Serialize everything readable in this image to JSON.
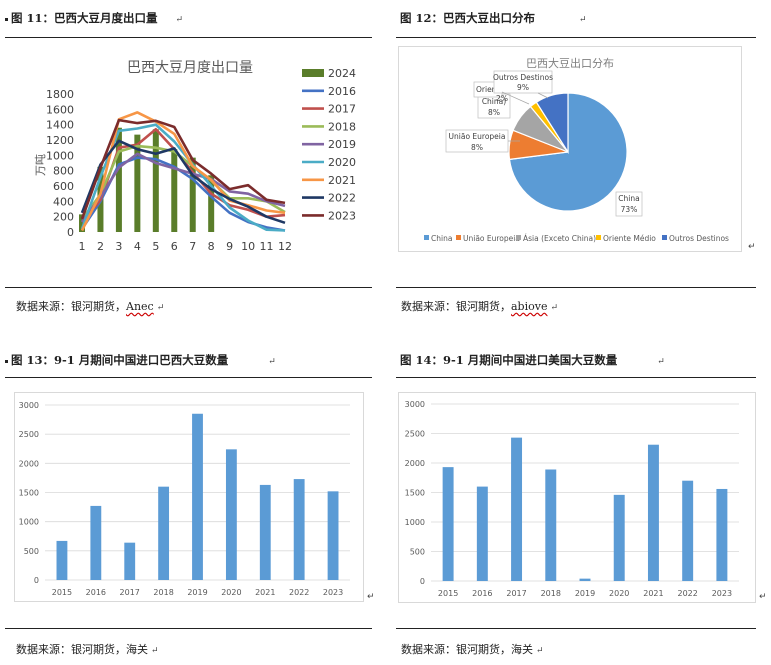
{
  "figures": [
    {
      "title": "图 11：巴西大豆月度出口量",
      "source": "数据来源：银河期货，",
      "source_link": "Anec"
    },
    {
      "title": "图 12：巴西大豆出口分布",
      "source": "数据来源：银河期货，",
      "source_link": "abiove"
    },
    {
      "title": "图 13：9-1 月期间中国进口巴西大豆数量",
      "source": "数据来源：银河期货，海关"
    },
    {
      "title": "图 14：9-1 月期间中国进口美国大豆数量",
      "source": "数据来源：银河期货，海关"
    }
  ],
  "paragraph_mark": "↵",
  "chart_data": [
    {
      "type": "bar+line",
      "title": "巴西大豆月度出口量",
      "ylabel": "万吨",
      "ylim": [
        0,
        1800
      ],
      "yticks": [
        0,
        200,
        400,
        600,
        800,
        1000,
        1200,
        1400,
        1600,
        1800
      ],
      "categories": [
        "1",
        "2",
        "3",
        "4",
        "5",
        "6",
        "7",
        "8",
        "9",
        "10",
        "11",
        "12"
      ],
      "bar_series": {
        "name": "2024",
        "color": "#5a7d2a",
        "values": [
          230,
          850,
          1360,
          1270,
          1340,
          1080,
          970,
          740,
          null,
          null,
          null,
          null
        ]
      },
      "series": [
        {
          "name": "2016",
          "color": "#4472c4",
          "values": [
            40,
            400,
            880,
            970,
            950,
            850,
            690,
            460,
            250,
            130,
            60,
            20
          ]
        },
        {
          "name": "2017",
          "color": "#c0504d",
          "values": [
            130,
            420,
            1100,
            1140,
            1340,
            1080,
            780,
            500,
            350,
            290,
            200,
            220
          ]
        },
        {
          "name": "2018",
          "color": "#9bbb59",
          "values": [
            170,
            490,
            1050,
            1120,
            1100,
            1050,
            860,
            670,
            440,
            440,
            400,
            260
          ]
        },
        {
          "name": "2019",
          "color": "#8064a2",
          "values": [
            130,
            460,
            840,
            1020,
            900,
            830,
            760,
            690,
            530,
            500,
            400,
            340
          ]
        },
        {
          "name": "2020",
          "color": "#4bacc6",
          "values": [
            40,
            720,
            1320,
            1350,
            1400,
            1180,
            880,
            600,
            320,
            150,
            30,
            20
          ]
        },
        {
          "name": "2021",
          "color": "#f79646",
          "values": [
            20,
            500,
            1470,
            1560,
            1440,
            1280,
            860,
            680,
            410,
            350,
            280,
            250
          ]
        },
        {
          "name": "2022",
          "color": "#1f3864",
          "values": [
            250,
            880,
            1190,
            1080,
            1020,
            1090,
            740,
            560,
            430,
            330,
            200,
            120
          ]
        },
        {
          "name": "2023",
          "color": "#7b2c2c",
          "values": [
            170,
            840,
            1460,
            1420,
            1450,
            1370,
            940,
            760,
            560,
            610,
            420,
            380
          ]
        }
      ],
      "legend": "right",
      "grid": false
    },
    {
      "type": "pie",
      "title": "巴西大豆出口分布",
      "labels": [
        "China",
        "União Europeia",
        "Ásia (Exceto China)",
        "Oriente Médio",
        "Outros Destinos"
      ],
      "values": [
        73,
        8,
        8,
        2,
        9
      ],
      "value_labels": [
        "73%",
        "8%",
        "8%",
        "2%",
        "9%"
      ],
      "data_label_names": [
        "China",
        "União Europeia",
        "Ásia (Exceto China)",
        "Oriente Médio",
        "Outros Destinos"
      ],
      "colors": [
        "#5b9bd5",
        "#ed7d31",
        "#a5a5a5",
        "#ffc000",
        "#4472c4"
      ],
      "legend": "bottom"
    },
    {
      "type": "bar",
      "categories": [
        "2015",
        "2016",
        "2017",
        "2018",
        "2019",
        "2020",
        "2021",
        "2022",
        "2023"
      ],
      "values": [
        670,
        1270,
        640,
        1600,
        2850,
        2240,
        1630,
        1730,
        1520
      ],
      "ylim": [
        0,
        3000
      ],
      "yticks": [
        0,
        500,
        1000,
        1500,
        2000,
        2500,
        3000
      ],
      "color": "#5b9bd5",
      "grid": true
    },
    {
      "type": "bar",
      "categories": [
        "2015",
        "2016",
        "2017",
        "2018",
        "2019",
        "2020",
        "2021",
        "2022",
        "2023"
      ],
      "values": [
        1930,
        1600,
        2430,
        1890,
        40,
        1460,
        2310,
        1700,
        1560
      ],
      "ylim": [
        0,
        3000
      ],
      "yticks": [
        0,
        500,
        1000,
        1500,
        2000,
        2500,
        3000
      ],
      "color": "#5b9bd5",
      "grid": true
    }
  ]
}
